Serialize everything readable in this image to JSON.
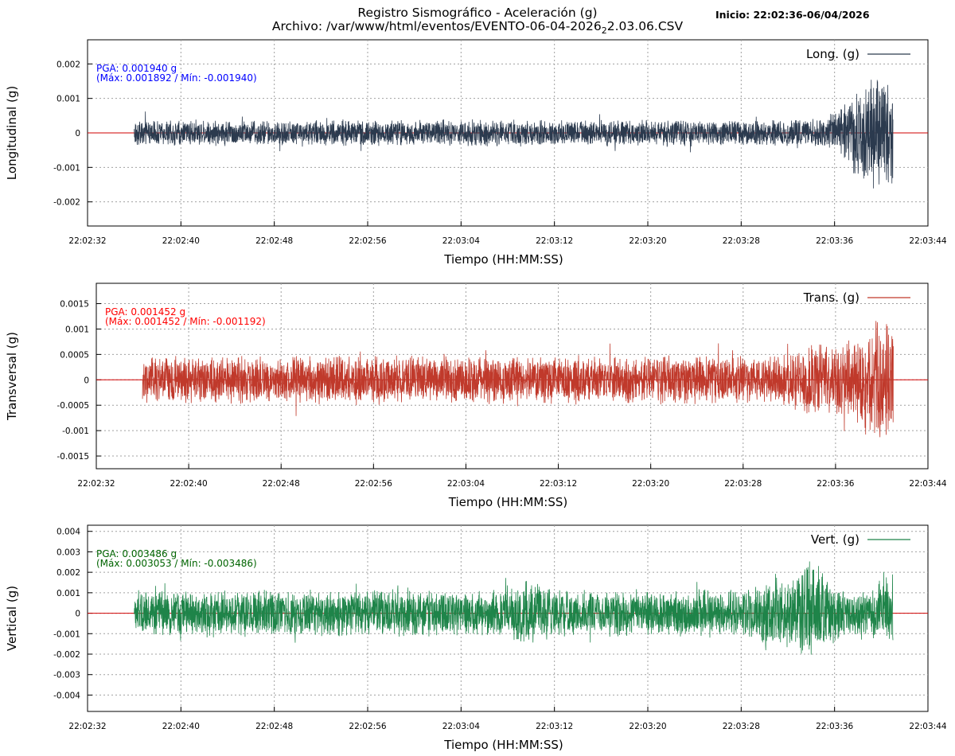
{
  "header": {
    "title": "Registro Sismográfico - Aceleración (g)",
    "file_prefix": "Archivo: /var/www/html/eventos/EVENTO-06-04-2026",
    "file_sub": "2",
    "file_suffix": "2.03.06.CSV",
    "start": "Inicio: 22:02:36-06/04/2026"
  },
  "chart_data": [
    {
      "type": "line",
      "channel": "long",
      "ylabel": "Longitudinal (g)",
      "xlabel": "Tiempo (HH:MM:SS)",
      "legend": "Long. (g)",
      "legend_position": "top-right",
      "color": "#2b3a4e",
      "annotation_color": "#0000ff",
      "pga_label": "PGA: 0.001940 g",
      "range_label": "(Máx: 0.001892 / Mín: -0.001940)",
      "pga": 0.00194,
      "max": 0.001892,
      "min": -0.00194,
      "signal_start": "22:02:36",
      "signal_end": "22:03:41",
      "ylim": [
        -0.0027,
        0.0027
      ],
      "yticks": [
        -0.002,
        -0.001,
        0,
        0.001,
        0.002
      ],
      "ytick_labels": [
        "-0.002",
        "-0.001",
        "0",
        "0.001",
        "0.002"
      ],
      "xlim": [
        "22:02:32",
        "22:03:44"
      ],
      "xtick_labels": [
        "22:02:32",
        "22:02:40",
        "22:02:48",
        "22:02:56",
        "22:03:04",
        "22:03:12",
        "22:03:20",
        "22:03:28",
        "22:03:36",
        "22:03:44"
      ],
      "noise_level": 0.0004,
      "bursts": [
        {
          "t": 67.5,
          "amp": 0.00145,
          "width": 2.6
        },
        {
          "t": 71.5,
          "amp": 0.0007,
          "width": 1.8
        },
        {
          "t": 74.0,
          "amp": 0.0008,
          "width": 1.2
        },
        {
          "t": 84.0,
          "amp": 0.0002,
          "width": 3.0
        }
      ],
      "grid": true
    },
    {
      "type": "line",
      "channel": "trans",
      "ylabel": "Transversal (g)",
      "xlabel": "Tiempo (HH:MM:SS)",
      "legend": "Trans. (g)",
      "legend_position": "top-right",
      "color": "#c0392b",
      "annotation_color": "#ff0000",
      "pga_label": "PGA: 0.001452 g",
      "range_label": "(Máx: 0.001452 / Mín: -0.001192)",
      "pga": 0.001452,
      "max": 0.001452,
      "min": -0.001192,
      "signal_start": "22:02:36",
      "signal_end": "22:03:41",
      "ylim": [
        -0.00175,
        0.0019
      ],
      "yticks": [
        -0.0015,
        -0.001,
        -0.0005,
        0,
        0.0005,
        0.001,
        0.0015
      ],
      "ytick_labels": [
        "-0.0015",
        "-0.001",
        "-0.0005",
        "0",
        "0.0005",
        "0.001",
        "0.0015"
      ],
      "xlim": [
        "22:02:32",
        "22:03:44"
      ],
      "xtick_labels": [
        "22:02:32",
        "22:02:40",
        "22:02:48",
        "22:02:56",
        "22:03:04",
        "22:03:12",
        "22:03:20",
        "22:03:28",
        "22:03:36",
        "22:03:44"
      ],
      "noise_level": 0.0005,
      "bursts": [
        {
          "t": 68.0,
          "amp": 0.0008,
          "width": 2.8
        },
        {
          "t": 62.5,
          "amp": 0.0003,
          "width": 2.0
        },
        {
          "t": 75.5,
          "amp": 0.0003,
          "width": 2.0
        }
      ],
      "grid": true
    },
    {
      "type": "line",
      "channel": "vert",
      "ylabel": "Vertical (g)",
      "xlabel": "Tiempo (HH:MM:SS)",
      "legend": "Vert. (g)",
      "legend_position": "top-right",
      "color": "#1e8449",
      "annotation_color": "#006400",
      "pga_label": "PGA: 0.003486 g",
      "range_label": "(Máx: 0.003053 / Mín: -0.003486)",
      "pga": 0.003486,
      "max": 0.003053,
      "min": -0.003486,
      "signal_start": "22:02:36",
      "signal_end": "22:03:41",
      "ylim": [
        -0.0048,
        0.0043
      ],
      "yticks": [
        -0.004,
        -0.003,
        -0.002,
        -0.001,
        0,
        0.001,
        0.002,
        0.003,
        0.004
      ],
      "ytick_labels": [
        "-0.004",
        "-0.003",
        "-0.002",
        "-0.001",
        "0",
        "0.001",
        "0.002",
        "0.003",
        "0.004"
      ],
      "xlim": [
        "22:02:32",
        "22:03:44"
      ],
      "xtick_labels": [
        "22:02:32",
        "22:02:40",
        "22:02:48",
        "22:02:56",
        "22:03:04",
        "22:03:12",
        "22:03:20",
        "22:03:28",
        "22:03:36",
        "22:03:44"
      ],
      "noise_level": 0.0012,
      "bursts": [
        {
          "t": 62.0,
          "amp": 0.0015,
          "width": 1.6
        },
        {
          "t": 58.5,
          "amp": 0.0009,
          "width": 1.2
        },
        {
          "t": 69.5,
          "amp": 0.0012,
          "width": 1.4
        },
        {
          "t": 38.0,
          "amp": 0.0005,
          "width": 2.0
        }
      ],
      "grid": true
    }
  ]
}
